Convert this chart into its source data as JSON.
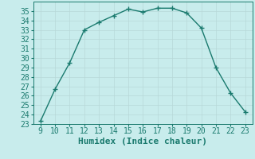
{
  "x": [
    9,
    10,
    11,
    12,
    13,
    14,
    15,
    16,
    17,
    18,
    19,
    20,
    21,
    22,
    23
  ],
  "y": [
    23.3,
    26.7,
    29.5,
    33.0,
    33.8,
    34.5,
    35.2,
    34.9,
    35.3,
    35.3,
    34.8,
    33.2,
    29.0,
    26.3,
    24.3
  ],
  "line_color": "#1a7a6e",
  "marker_color": "#1a7a6e",
  "bg_color": "#c8ecec",
  "grid_color": "#b8d8d8",
  "axis_label_color": "#1a7a6e",
  "tick_label_color": "#1a7a6e",
  "xlabel": "Humidex (Indice chaleur)",
  "xlim": [
    8.5,
    23.5
  ],
  "ylim": [
    23,
    36
  ],
  "yticks": [
    23,
    24,
    25,
    26,
    27,
    28,
    29,
    30,
    31,
    32,
    33,
    34,
    35
  ],
  "xticks": [
    9,
    10,
    11,
    12,
    13,
    14,
    15,
    16,
    17,
    18,
    19,
    20,
    21,
    22,
    23
  ],
  "font_size": 7,
  "label_font_size": 8,
  "marker_size": 2.5,
  "line_width": 1.0
}
